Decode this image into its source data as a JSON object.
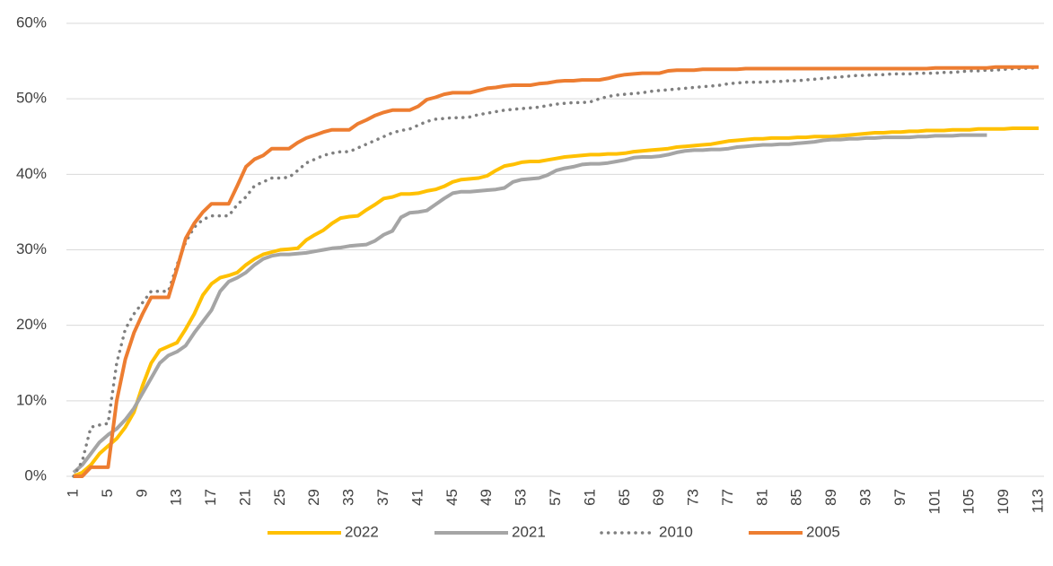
{
  "chart_data": {
    "type": "line",
    "categories": [
      1,
      null,
      null,
      null,
      5,
      null,
      null,
      null,
      9,
      null,
      null,
      null,
      13,
      null,
      null,
      null,
      17,
      null,
      null,
      null,
      21,
      null,
      null,
      null,
      25,
      null,
      null,
      null,
      29,
      null,
      null,
      null,
      33,
      null,
      null,
      null,
      37,
      null,
      null,
      null,
      41,
      null,
      null,
      null,
      45,
      null,
      null,
      null,
      49,
      null,
      null,
      null,
      53,
      null,
      null,
      null,
      57,
      null,
      null,
      null,
      61,
      null,
      null,
      null,
      65,
      null,
      null,
      null,
      69,
      null,
      null,
      null,
      73,
      null,
      null,
      null,
      77,
      null,
      null,
      null,
      81,
      null,
      null,
      null,
      85,
      null,
      null,
      null,
      89,
      null,
      null,
      null,
      93,
      null,
      null,
      null,
      97,
      null,
      null,
      null,
      101,
      null,
      null,
      null,
      105,
      null,
      null,
      null,
      109,
      null,
      null,
      null,
      113
    ],
    "ylim": [
      0,
      60
    ],
    "yticks": [
      {
        "value": 0,
        "label": "0%"
      },
      {
        "value": 10,
        "label": "10%"
      },
      {
        "value": 20,
        "label": "20%"
      },
      {
        "value": 30,
        "label": "30%"
      },
      {
        "value": 40,
        "label": "40%"
      },
      {
        "value": 50,
        "label": "50%"
      },
      {
        "value": 60,
        "label": "60%"
      }
    ],
    "grid": true,
    "legend": "bottom",
    "series": [
      {
        "name": "2022",
        "color": "#FFC000",
        "dash": "solid",
        "values": [
          0,
          0.5,
          1.5,
          3,
          4,
          5,
          6.5,
          8.5,
          12,
          15,
          16.7,
          17.2,
          17.7,
          19.5,
          21.5,
          24,
          25.5,
          26.3,
          26.6,
          27,
          28,
          28.8,
          29.4,
          29.7,
          30,
          30.1,
          30.2,
          31.3,
          32,
          32.6,
          33.5,
          34.2,
          34.4,
          34.5,
          35.3,
          36,
          36.8,
          37,
          37.4,
          37.4,
          37.5,
          37.8,
          38,
          38.4,
          39,
          39.3,
          39.4,
          39.5,
          39.8,
          40.5,
          41.1,
          41.3,
          41.6,
          41.7,
          41.7,
          41.9,
          42.1,
          42.3,
          42.4,
          42.5,
          42.6,
          42.6,
          42.7,
          42.7,
          42.8,
          43,
          43.1,
          43.2,
          43.3,
          43.4,
          43.6,
          43.7,
          43.8,
          43.9,
          44,
          44.2,
          44.4,
          44.5,
          44.6,
          44.7,
          44.7,
          44.8,
          44.8,
          44.8,
          44.9,
          44.9,
          45,
          45,
          45,
          45.1,
          45.2,
          45.3,
          45.4,
          45.5,
          45.5,
          45.6,
          45.6,
          45.7,
          45.7,
          45.8,
          45.8,
          45.8,
          45.9,
          45.9,
          45.9,
          46,
          46,
          46,
          46,
          46.1,
          46.1,
          46.1,
          46.1
        ]
      },
      {
        "name": "2021",
        "color": "#A5A5A5",
        "dash": "solid",
        "values": [
          0.5,
          1.5,
          3,
          4.5,
          5.5,
          6.3,
          7.5,
          9,
          11,
          13,
          15,
          16,
          16.5,
          17.3,
          19,
          20.5,
          22,
          24.5,
          25.8,
          26.3,
          27,
          28,
          28.8,
          29.2,
          29.4,
          29.4,
          29.5,
          29.6,
          29.8,
          30,
          30.2,
          30.3,
          30.5,
          30.6,
          30.7,
          31.2,
          32,
          32.5,
          34.3,
          34.9,
          35,
          35.2,
          36,
          36.8,
          37.5,
          37.7,
          37.7,
          37.8,
          37.9,
          38,
          38.2,
          39,
          39.3,
          39.4,
          39.5,
          39.9,
          40.5,
          40.8,
          41,
          41.3,
          41.4,
          41.4,
          41.5,
          41.7,
          41.9,
          42.2,
          42.3,
          42.3,
          42.4,
          42.6,
          42.9,
          43.1,
          43.2,
          43.2,
          43.3,
          43.3,
          43.4,
          43.6,
          43.7,
          43.8,
          43.9,
          43.9,
          44,
          44,
          44.1,
          44.2,
          44.3,
          44.5,
          44.6,
          44.6,
          44.7,
          44.7,
          44.8,
          44.8,
          44.9,
          44.9,
          44.9,
          44.9,
          45,
          45,
          45.1,
          45.1,
          45.1,
          45.2,
          45.2,
          45.2,
          45.2,
          null,
          null,
          null,
          null,
          null,
          null
        ]
      },
      {
        "name": "2010",
        "color": "#7F7F7F",
        "dash": "dotted",
        "values": [
          0,
          2,
          6.5,
          6.8,
          7,
          15,
          19.5,
          21.5,
          23,
          24.5,
          24.5,
          24.5,
          28,
          31,
          33,
          34,
          34.5,
          34.5,
          34.5,
          36,
          37,
          38.5,
          39,
          39.5,
          39.5,
          39.6,
          40.5,
          41.5,
          42,
          42.5,
          42.8,
          43,
          43,
          43.5,
          44,
          44.5,
          45,
          45.5,
          45.8,
          46,
          46.5,
          47,
          47.3,
          47.4,
          47.5,
          47.5,
          47.6,
          47.9,
          48.1,
          48.3,
          48.5,
          48.6,
          48.7,
          48.8,
          48.9,
          49.1,
          49.3,
          49.4,
          49.5,
          49.5,
          49.6,
          50,
          50.3,
          50.5,
          50.6,
          50.7,
          50.8,
          51,
          51.1,
          51.2,
          51.3,
          51.4,
          51.5,
          51.6,
          51.7,
          51.8,
          52,
          52.1,
          52.2,
          52.2,
          52.2,
          52.3,
          52.3,
          52.4,
          52.4,
          52.5,
          52.6,
          52.7,
          52.8,
          52.9,
          53,
          53.1,
          53.1,
          53.2,
          53.2,
          53.3,
          53.3,
          53.3,
          53.4,
          53.4,
          53.4,
          53.5,
          53.5,
          53.6,
          53.7,
          53.7,
          53.8,
          53.8,
          53.9,
          54,
          54,
          54.1,
          54.1
        ]
      },
      {
        "name": "2005",
        "color": "#ED7D31",
        "dash": "solid",
        "values": [
          0,
          0,
          1.2,
          1.2,
          1.2,
          10,
          15.5,
          19,
          21.5,
          23.7,
          23.7,
          23.7,
          27.5,
          31.5,
          33.5,
          35,
          36.1,
          36.1,
          36.1,
          38.5,
          41,
          42,
          42.5,
          43.4,
          43.4,
          43.4,
          44.2,
          44.8,
          45.2,
          45.6,
          45.9,
          45.9,
          45.9,
          46.7,
          47.2,
          47.8,
          48.2,
          48.5,
          48.5,
          48.5,
          49,
          49.9,
          50.2,
          50.6,
          50.8,
          50.8,
          50.8,
          51.1,
          51.4,
          51.5,
          51.7,
          51.8,
          51.8,
          51.8,
          52,
          52.1,
          52.3,
          52.4,
          52.4,
          52.5,
          52.5,
          52.5,
          52.7,
          53,
          53.2,
          53.3,
          53.4,
          53.4,
          53.4,
          53.7,
          53.8,
          53.8,
          53.8,
          53.9,
          53.9,
          53.9,
          53.9,
          53.9,
          54,
          54,
          54,
          54,
          54,
          54,
          54,
          54,
          54,
          54,
          54,
          54,
          54,
          54,
          54,
          54,
          54,
          54,
          54,
          54,
          54,
          54,
          54.1,
          54.1,
          54.1,
          54.1,
          54.1,
          54.1,
          54.1,
          54.2,
          54.2,
          54.2,
          54.2,
          54.2,
          54.2
        ]
      }
    ]
  }
}
